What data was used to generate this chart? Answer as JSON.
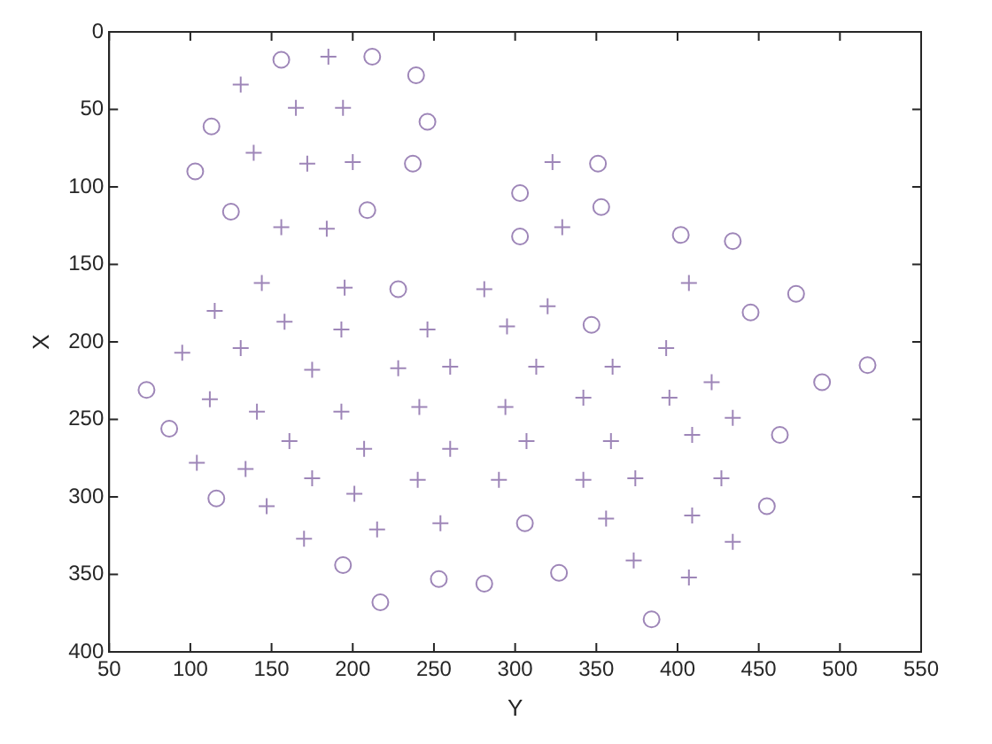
{
  "chart_data": {
    "type": "scatter",
    "xlabel": "Y",
    "ylabel": "X",
    "xlim": [
      50,
      550
    ],
    "xticks": [
      50,
      100,
      150,
      200,
      250,
      300,
      350,
      400,
      450,
      500,
      550
    ],
    "ylim": [
      400,
      0
    ],
    "yticks": [
      0,
      50,
      100,
      150,
      200,
      250,
      300,
      350,
      400
    ],
    "grid": false,
    "legend": false,
    "series": [
      {
        "color": "#9e86b8",
        "marker": "circle",
        "x": [
          156,
          212,
          239,
          246,
          113,
          103,
          237,
          125,
          209,
          303,
          303,
          228,
          351,
          353,
          402,
          434,
          473,
          445,
          347,
          517,
          306,
          327,
          384,
          455,
          463,
          489,
          73,
          87,
          116,
          194,
          217,
          253,
          281
        ],
        "values": [
          18,
          16,
          28,
          58,
          61,
          90,
          85,
          116,
          115,
          104,
          132,
          166,
          85,
          113,
          131,
          135,
          169,
          181,
          189,
          215,
          317,
          349,
          379,
          306,
          260,
          226,
          231,
          256,
          301,
          344,
          368,
          353,
          356
        ]
      },
      {
        "color": "#9e86b8",
        "marker": "cross",
        "x": [
          131,
          185,
          165,
          194,
          139,
          172,
          200,
          156,
          184,
          144,
          195,
          281,
          115,
          158,
          193,
          246,
          295,
          323,
          329,
          407,
          320,
          313,
          360,
          393,
          421,
          342,
          395,
          434,
          294,
          307,
          359,
          409,
          290,
          342,
          374,
          427,
          356,
          409,
          434,
          373,
          407,
          95,
          131,
          175,
          228,
          260,
          112,
          141,
          193,
          241,
          161,
          207,
          260,
          104,
          134,
          175,
          201,
          240,
          147,
          215,
          254,
          170
        ],
        "values": [
          34,
          16,
          49,
          49,
          78,
          85,
          84,
          126,
          127,
          162,
          165,
          166,
          180,
          187,
          192,
          192,
          190,
          84,
          126,
          162,
          177,
          216,
          216,
          204,
          226,
          236,
          236,
          249,
          242,
          264,
          264,
          260,
          289,
          289,
          288,
          288,
          314,
          312,
          329,
          341,
          352,
          207,
          204,
          218,
          217,
          216,
          237,
          245,
          245,
          242,
          264,
          269,
          269,
          278,
          282,
          288,
          298,
          289,
          306,
          321,
          317,
          327
        ]
      }
    ]
  }
}
